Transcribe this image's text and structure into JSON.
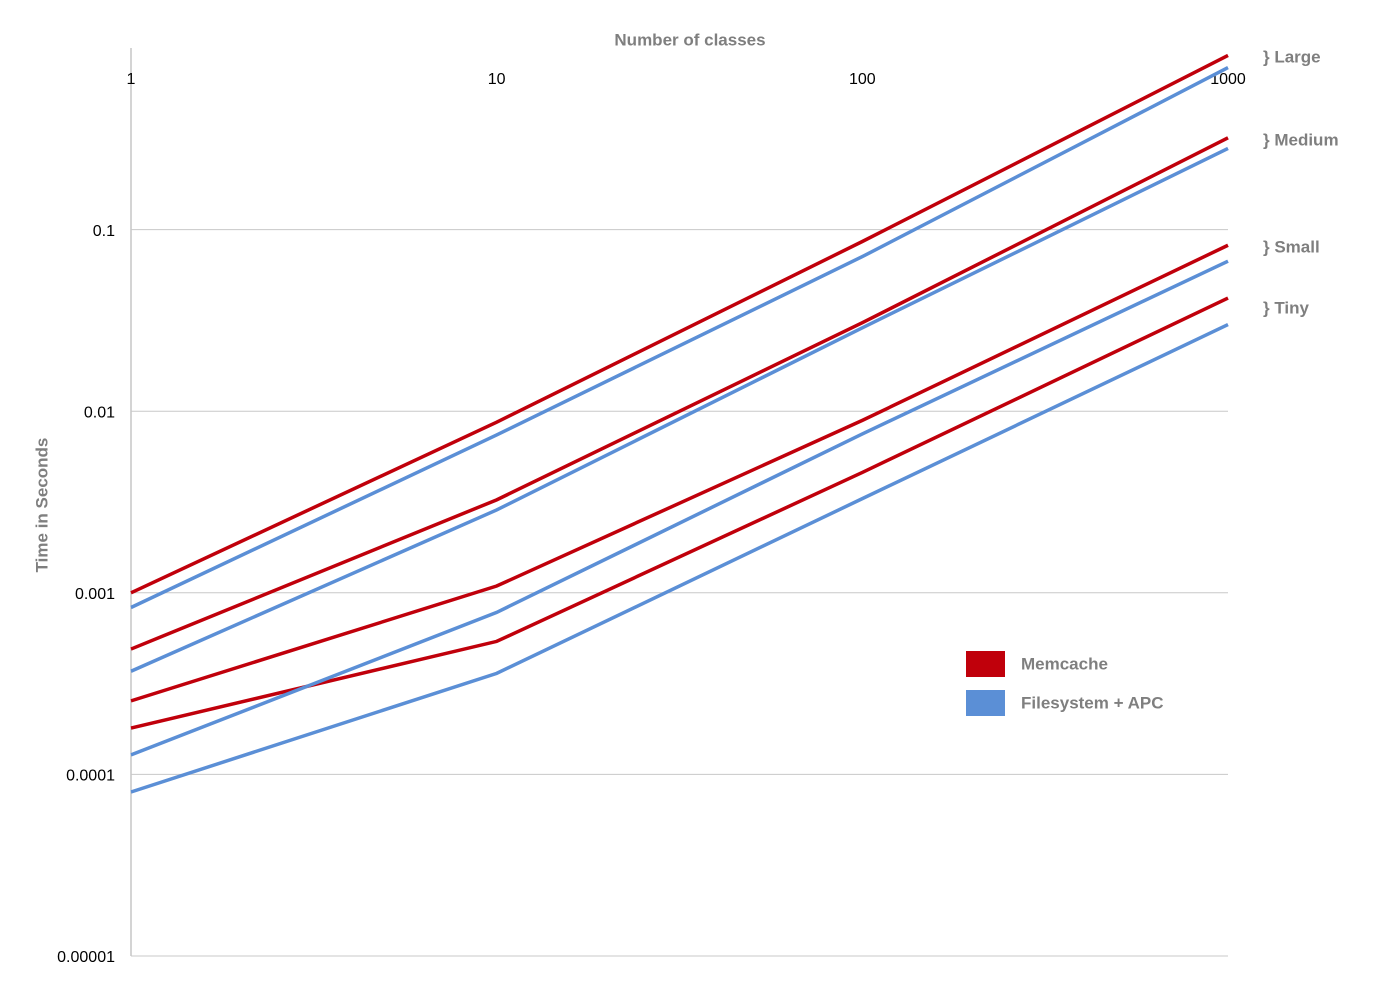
{
  "chart_data": {
    "type": "line",
    "x_label": "Number of classes",
    "y_label": "Time in Seconds",
    "x": [
      1,
      10,
      100,
      1000
    ],
    "xlim": [
      1,
      1000
    ],
    "xticks": [
      1,
      10,
      100,
      1000
    ],
    "xscale": "log",
    "ylim": [
      1e-05,
      1
    ],
    "yscale": "log",
    "yticks": [
      0.1,
      0.01,
      0.001,
      0.0001,
      {
        "value": 1e-05,
        "label": "0.00001"
      }
    ],
    "grid": true,
    "legend": "lower-right",
    "annotations": [
      "} Large",
      "} Medium",
      "} Small",
      "} Tiny"
    ],
    "series": [
      {
        "name": "Memcache",
        "color": "#c0000b",
        "lines": [
          [
            0.001,
            0.0087,
            0.086,
            0.91
          ],
          [
            0.00049,
            0.00325,
            0.0307,
            0.32
          ],
          [
            0.000254,
            0.00109,
            0.0089,
            0.082
          ],
          [
            0.00018,
            0.00054,
            0.0046,
            0.042
          ]
        ]
      },
      {
        "name": "Filesystem + APC",
        "color": "#5b8fd6",
        "lines": [
          [
            0.00083,
            0.0074,
            0.071,
            0.78
          ],
          [
            0.00037,
            0.00286,
            0.0288,
            0.28
          ],
          [
            0.000128,
            0.00078,
            0.0075,
            0.067
          ],
          [
            8e-05,
            0.00036,
            0.0033,
            0.03
          ]
        ]
      }
    ]
  }
}
